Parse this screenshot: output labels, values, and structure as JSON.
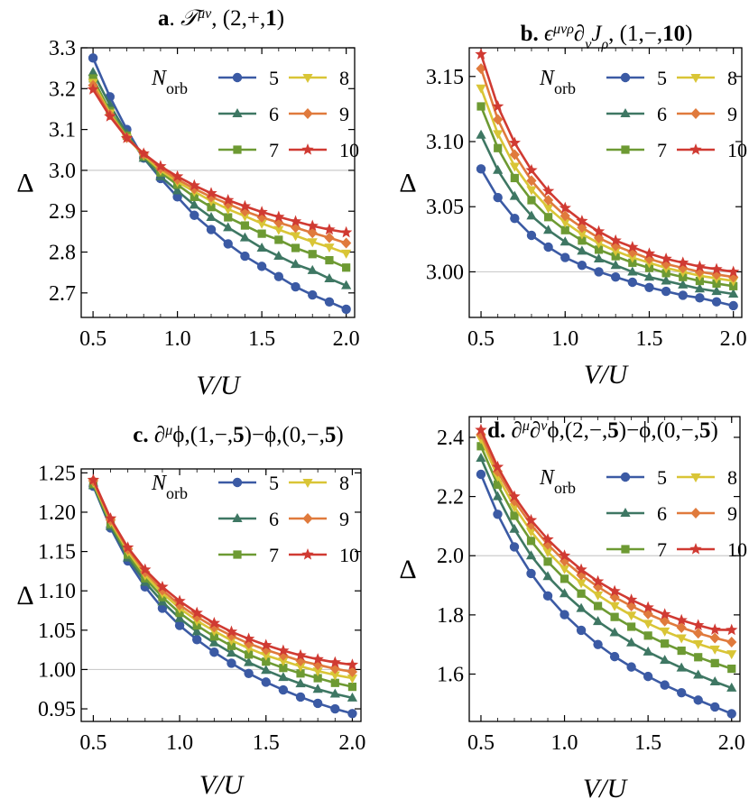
{
  "figure": {
    "ylabel": "Δ",
    "xlabel": "V/U"
  },
  "chart_data": [
    {
      "type": "line",
      "panel_tag": "a",
      "title": "a. 𝒯^μν, (2,+,1)",
      "title_parts": {
        "tag": "a",
        "op": "𝒯",
        "sup": "μν",
        "rest": ", (2,+,",
        "bold_num": "1",
        "end": ")"
      },
      "xlabel": "V/U",
      "ylabel": "Δ",
      "xlim": [
        0.43,
        2.05
      ],
      "ylim": [
        2.64,
        3.3
      ],
      "xticks": [
        "0.5",
        "1.0",
        "1.5",
        "2.0"
      ],
      "yticks": [
        "2.7",
        "2.8",
        "2.9",
        "3.0",
        "3.1",
        "3.2",
        "3.3"
      ],
      "reference_line": 3.0,
      "legend_title": "N_orb",
      "x": [
        0.5,
        0.6,
        0.7,
        0.8,
        0.9,
        1.0,
        1.1,
        1.2,
        1.3,
        1.4,
        1.5,
        1.6,
        1.7,
        1.8,
        1.9,
        2.0
      ],
      "series": [
        {
          "name": "5",
          "values": [
            3.275,
            3.18,
            3.1,
            3.03,
            2.98,
            2.935,
            2.89,
            2.855,
            2.82,
            2.79,
            2.765,
            2.74,
            2.715,
            2.695,
            2.678,
            2.66
          ]
        },
        {
          "name": "6",
          "values": [
            3.24,
            3.16,
            3.09,
            3.03,
            2.985,
            2.95,
            2.915,
            2.885,
            2.86,
            2.835,
            2.81,
            2.79,
            2.77,
            2.755,
            2.735,
            2.718
          ]
        },
        {
          "name": "7",
          "values": [
            3.225,
            3.145,
            3.085,
            3.035,
            2.995,
            2.965,
            2.935,
            2.91,
            2.885,
            2.865,
            2.845,
            2.83,
            2.81,
            2.795,
            2.78,
            2.762
          ]
        },
        {
          "name": "8",
          "values": [
            3.215,
            3.14,
            3.08,
            3.037,
            3.0,
            2.972,
            2.948,
            2.925,
            2.905,
            2.888,
            2.87,
            2.855,
            2.84,
            2.825,
            2.812,
            2.797
          ]
        },
        {
          "name": "9",
          "values": [
            3.208,
            3.136,
            3.08,
            3.04,
            3.005,
            2.978,
            2.955,
            2.935,
            2.918,
            2.9,
            2.885,
            2.872,
            2.86,
            2.847,
            2.835,
            2.822
          ]
        },
        {
          "name": "10",
          "values": [
            3.198,
            3.132,
            3.079,
            3.041,
            3.01,
            2.985,
            2.963,
            2.944,
            2.927,
            2.912,
            2.898,
            2.886,
            2.875,
            2.864,
            2.855,
            2.848
          ]
        }
      ]
    },
    {
      "type": "line",
      "panel_tag": "b",
      "title": "b. ϵ^μνρ ∂_ν J_ρ, (1,−,10)",
      "title_parts": {
        "tag": "b",
        "op": "ϵ",
        "sup": "μνρ",
        "mid": "∂",
        "sub1": "ν",
        "mid2": "J",
        "sub2": "ρ",
        "rest": ", (1,−,",
        "bold_num": "10",
        "end": ")"
      },
      "xlabel": "V/U",
      "ylabel": "Δ",
      "xlim": [
        0.43,
        2.05
      ],
      "ylim": [
        2.965,
        3.172
      ],
      "xticks": [
        "0.5",
        "1.0",
        "1.5",
        "2.0"
      ],
      "yticks": [
        "3.00",
        "3.05",
        "3.10",
        "3.15"
      ],
      "reference_line": 3.0,
      "legend_title": "N_orb",
      "x": [
        0.5,
        0.6,
        0.7,
        0.8,
        0.9,
        1.0,
        1.1,
        1.2,
        1.3,
        1.4,
        1.5,
        1.6,
        1.7,
        1.8,
        1.9,
        2.0
      ],
      "series": [
        {
          "name": "5",
          "values": [
            3.079,
            3.057,
            3.041,
            3.028,
            3.019,
            3.011,
            3.005,
            3.0,
            2.996,
            2.992,
            2.988,
            2.985,
            2.982,
            2.98,
            2.977,
            2.974
          ]
        },
        {
          "name": "6",
          "values": [
            3.105,
            3.078,
            3.058,
            3.043,
            3.032,
            3.023,
            3.016,
            3.01,
            3.005,
            3.0,
            2.996,
            2.993,
            2.99,
            2.987,
            2.985,
            2.983
          ]
        },
        {
          "name": "7",
          "values": [
            3.127,
            3.095,
            3.072,
            3.055,
            3.042,
            3.032,
            3.024,
            3.017,
            3.012,
            3.007,
            3.003,
            2.999,
            2.996,
            2.993,
            2.991,
            2.989
          ]
        },
        {
          "name": "8",
          "values": [
            3.141,
            3.106,
            3.081,
            3.063,
            3.049,
            3.038,
            3.029,
            3.022,
            3.016,
            3.011,
            3.007,
            3.003,
            3.0,
            2.997,
            2.995,
            2.993
          ]
        },
        {
          "name": "9",
          "values": [
            3.156,
            3.117,
            3.09,
            3.07,
            3.055,
            3.043,
            3.034,
            3.026,
            3.02,
            3.015,
            3.01,
            3.006,
            3.003,
            3.0,
            2.998,
            2.996
          ]
        },
        {
          "name": "10",
          "values": [
            3.167,
            3.127,
            3.099,
            3.078,
            3.062,
            3.049,
            3.039,
            3.031,
            3.024,
            3.019,
            3.014,
            3.01,
            3.007,
            3.004,
            3.002,
            3.0
          ]
        }
      ]
    },
    {
      "type": "line",
      "panel_tag": "c",
      "title": "c. ∂^μ ϕ,(1,−,5)−ϕ,(0,−,5)",
      "title_parts": {
        "tag": "c",
        "op": "∂",
        "sup": "μ",
        "mid": "ϕ,(1,−,",
        "bold_num": "5",
        "mid2": ")−ϕ,(0,−,",
        "bold_num2": "5",
        "end": ")"
      },
      "xlabel": "V/U",
      "ylabel": "Δ",
      "xlim": [
        0.43,
        2.05
      ],
      "ylim": [
        0.934,
        1.255
      ],
      "xticks": [
        "0.5",
        "1.0",
        "1.5",
        "2.0"
      ],
      "yticks": [
        "0.95",
        "1.00",
        "1.05",
        "1.10",
        "1.15",
        "1.20",
        "1.25"
      ],
      "reference_line": 1.0,
      "legend_title": "N_orb",
      "x": [
        0.5,
        0.6,
        0.7,
        0.8,
        0.9,
        1.0,
        1.1,
        1.2,
        1.3,
        1.4,
        1.5,
        1.6,
        1.7,
        1.8,
        1.9,
        2.0
      ],
      "series": [
        {
          "name": "5",
          "values": [
            1.233,
            1.18,
            1.138,
            1.105,
            1.078,
            1.056,
            1.038,
            1.022,
            1.008,
            0.995,
            0.984,
            0.974,
            0.965,
            0.957,
            0.95,
            0.944
          ]
        },
        {
          "name": "6",
          "values": [
            1.234,
            1.182,
            1.142,
            1.111,
            1.086,
            1.065,
            1.048,
            1.034,
            1.021,
            1.009,
            0.999,
            0.99,
            0.982,
            0.975,
            0.969,
            0.964
          ]
        },
        {
          "name": "7",
          "values": [
            1.236,
            1.185,
            1.146,
            1.116,
            1.092,
            1.072,
            1.056,
            1.042,
            1.03,
            1.019,
            1.01,
            1.002,
            0.995,
            0.989,
            0.983,
            0.978
          ]
        },
        {
          "name": "8",
          "values": [
            1.238,
            1.188,
            1.15,
            1.12,
            1.097,
            1.078,
            1.062,
            1.049,
            1.037,
            1.027,
            1.018,
            1.011,
            1.004,
            0.998,
            0.993,
            0.989
          ]
        },
        {
          "name": "9",
          "values": [
            1.24,
            1.19,
            1.153,
            1.124,
            1.101,
            1.082,
            1.067,
            1.054,
            1.043,
            1.033,
            1.025,
            1.018,
            1.011,
            1.006,
            1.001,
            0.997
          ]
        },
        {
          "name": "10",
          "values": [
            1.241,
            1.192,
            1.155,
            1.127,
            1.105,
            1.087,
            1.072,
            1.059,
            1.048,
            1.039,
            1.031,
            1.024,
            1.018,
            1.013,
            1.009,
            1.006
          ]
        }
      ]
    },
    {
      "type": "line",
      "panel_tag": "d",
      "title": "d. ∂^μ ∂^ν ϕ,(2,−,5)−ϕ,(0,−,5)",
      "title_parts": {
        "tag": "d",
        "op": "∂",
        "sup": "μ",
        "mid": "∂",
        "sup2": "ν",
        "mid2": "ϕ,(2,−,",
        "bold_num": "5",
        "mid3": ")−ϕ,(0,−,",
        "bold_num2": "5",
        "end": ")"
      },
      "xlabel": "V/U",
      "ylabel": "Δ",
      "xlim": [
        0.43,
        2.05
      ],
      "ylim": [
        1.44,
        2.47
      ],
      "xticks": [
        "0.5",
        "1.0",
        "1.5",
        "2.0"
      ],
      "yticks": [
        "1.6",
        "1.8",
        "2.0",
        "2.2",
        "2.4"
      ],
      "reference_line": 2.0,
      "legend_title": "N_orb",
      "x": [
        0.5,
        0.6,
        0.7,
        0.8,
        0.9,
        1.0,
        1.1,
        1.2,
        1.3,
        1.4,
        1.5,
        1.6,
        1.7,
        1.8,
        1.9,
        2.0
      ],
      "series": [
        {
          "name": "5",
          "values": [
            2.275,
            2.14,
            2.03,
            1.94,
            1.864,
            1.801,
            1.748,
            1.7,
            1.659,
            1.624,
            1.592,
            1.563,
            1.537,
            1.512,
            1.489,
            1.466
          ]
        },
        {
          "name": "6",
          "values": [
            2.33,
            2.2,
            2.09,
            2.0,
            1.93,
            1.872,
            1.822,
            1.778,
            1.74,
            1.706,
            1.675,
            1.647,
            1.621,
            1.597,
            1.574,
            1.553
          ]
        },
        {
          "name": "7",
          "values": [
            2.37,
            2.24,
            2.135,
            2.05,
            1.98,
            1.922,
            1.872,
            1.83,
            1.793,
            1.76,
            1.73,
            1.703,
            1.679,
            1.657,
            1.637,
            1.618
          ]
        },
        {
          "name": "8",
          "values": [
            2.395,
            2.268,
            2.165,
            2.082,
            2.013,
            1.956,
            1.908,
            1.867,
            1.831,
            1.799,
            1.771,
            1.745,
            1.722,
            1.702,
            1.684,
            1.668
          ]
        },
        {
          "name": "9",
          "values": [
            2.41,
            2.285,
            2.185,
            2.105,
            2.038,
            1.982,
            1.935,
            1.895,
            1.86,
            1.83,
            1.803,
            1.779,
            1.757,
            1.738,
            1.722,
            1.708
          ]
        },
        {
          "name": "10",
          "values": [
            2.425,
            2.3,
            2.2,
            2.12,
            2.055,
            2.0,
            1.953,
            1.913,
            1.88,
            1.851,
            1.825,
            1.802,
            1.782,
            1.765,
            1.75,
            1.749
          ]
        }
      ]
    }
  ],
  "series_style": [
    {
      "name": "5",
      "color": "#3b5aa4",
      "marker": "circle"
    },
    {
      "name": "6",
      "color": "#3e7763",
      "marker": "triangle-up"
    },
    {
      "name": "7",
      "color": "#6d9a33",
      "marker": "square"
    },
    {
      "name": "8",
      "color": "#d9c536",
      "marker": "triangle-down"
    },
    {
      "name": "9",
      "color": "#e07a3c",
      "marker": "diamond"
    },
    {
      "name": "10",
      "color": "#d03a32",
      "marker": "star"
    }
  ]
}
